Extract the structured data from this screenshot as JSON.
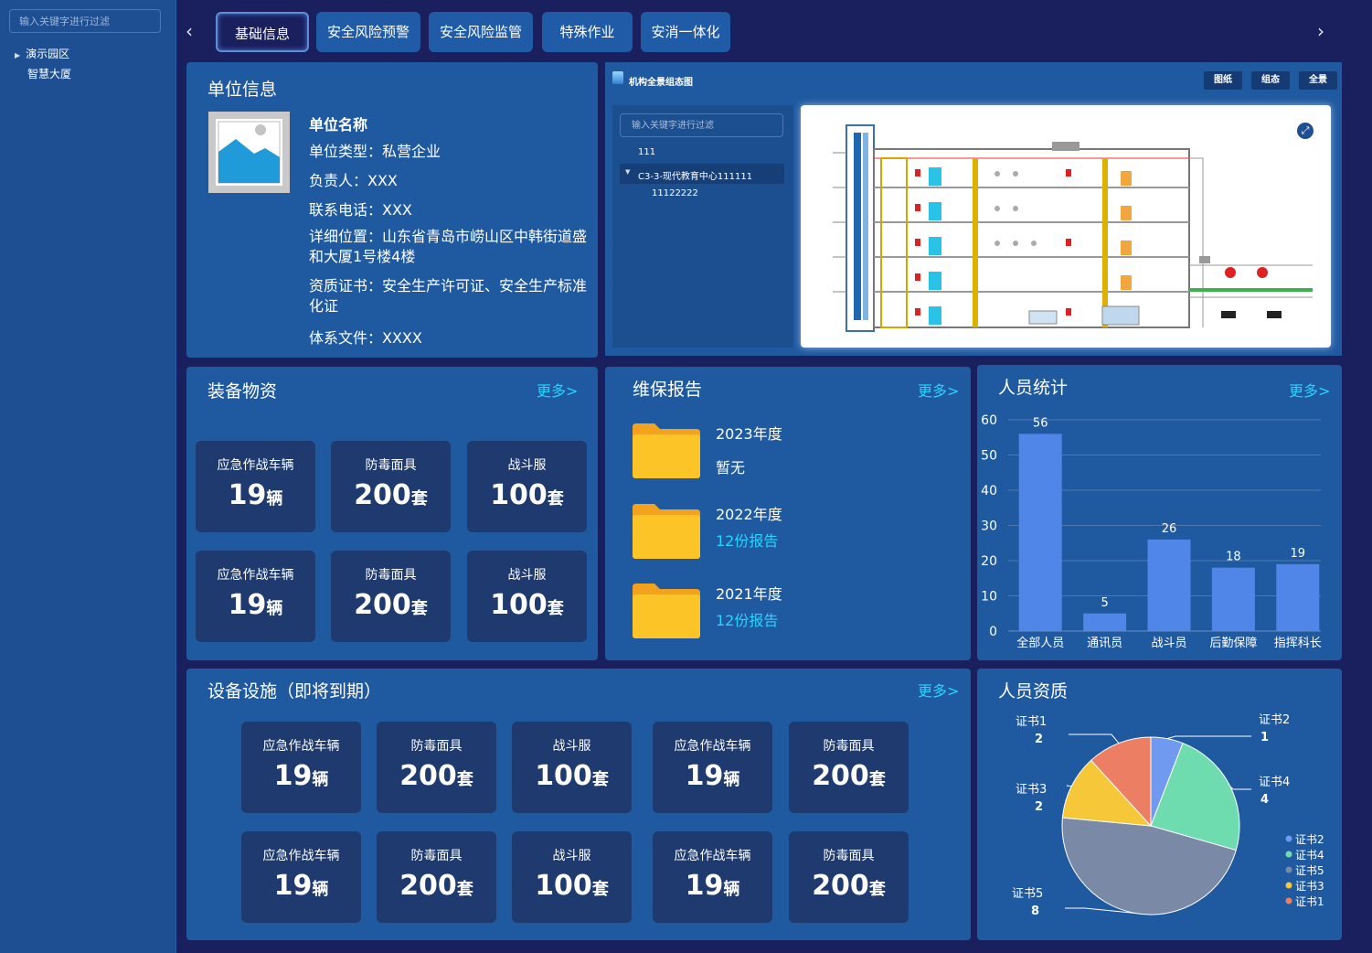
{
  "sidebar": {
    "filter_placeholder": "输入关键字进行过滤",
    "tree": [
      {
        "label": "演示园区"
      },
      {
        "label": "智慧大厦"
      }
    ]
  },
  "tabs": [
    {
      "label": "基础信息",
      "active": true
    },
    {
      "label": "安全风险预警"
    },
    {
      "label": "安全风险监管"
    },
    {
      "label": "特殊作业"
    },
    {
      "label": "安消一体化"
    }
  ],
  "nav": {
    "prev": "‹",
    "next": "›"
  },
  "unit_info": {
    "title": "单位信息",
    "name": "单位名称",
    "type": "单位类型：私营企业",
    "owner": "负责人：XXX",
    "phone": "联系电话：XXX",
    "address": "详细位置：山东省青岛市崂山区中韩街道盛和大厦1号楼4楼",
    "qualification": "资质证书：安全生产许可证、安全生产标准化证",
    "system_doc": "体系文件：XXXX"
  },
  "org_map": {
    "title": "机构全景组态图",
    "buttons": [
      "图纸",
      "组态",
      "全景"
    ],
    "filter_placeholder": "输入关键字进行过滤",
    "tree": [
      "111",
      "C3-3-现代教育中心111111",
      "11122222"
    ]
  },
  "equipment": {
    "title": "装备物资",
    "more": "更多>",
    "cards": [
      {
        "label": "应急作战车辆",
        "value": "19",
        "unit": "辆"
      },
      {
        "label": "防毒面具",
        "value": "200",
        "unit": "套"
      },
      {
        "label": "战斗服",
        "value": "100",
        "unit": "套"
      },
      {
        "label": "应急作战车辆",
        "value": "19",
        "unit": "辆"
      },
      {
        "label": "防毒面具",
        "value": "200",
        "unit": "套"
      },
      {
        "label": "战斗服",
        "value": "100",
        "unit": "套"
      }
    ]
  },
  "maintenance": {
    "title": "维保报告",
    "more": "更多>",
    "items": [
      {
        "year": "2023年度",
        "status": "暂无",
        "highlight": false
      },
      {
        "year": "2022年度",
        "status": "12份报告",
        "highlight": true
      },
      {
        "year": "2021年度",
        "status": "12份报告",
        "highlight": true
      }
    ]
  },
  "personnel": {
    "title": "人员统计",
    "more": "更多>",
    "chart_data": {
      "type": "bar",
      "categories": [
        "全部人员",
        "通讯员",
        "战斗员",
        "后勤保障",
        "指挥科长"
      ],
      "values": [
        56,
        5,
        26,
        18,
        19
      ],
      "ylim": [
        0,
        60
      ],
      "yticks": [
        "0",
        "10",
        "20",
        "30",
        "40",
        "50",
        "60"
      ],
      "bar_color": "#4f86e8",
      "grid": true
    }
  },
  "facilities": {
    "title": "设备设施（即将到期）",
    "more": "更多>",
    "cards": [
      {
        "label": "应急作战车辆",
        "value": "19",
        "unit": "辆"
      },
      {
        "label": "防毒面具",
        "value": "200",
        "unit": "套"
      },
      {
        "label": "战斗服",
        "value": "100",
        "unit": "套"
      },
      {
        "label": "应急作战车辆",
        "value": "19",
        "unit": "辆"
      },
      {
        "label": "防毒面具",
        "value": "200",
        "unit": "套"
      },
      {
        "label": "应急作战车辆",
        "value": "19",
        "unit": "辆"
      },
      {
        "label": "防毒面具",
        "value": "200",
        "unit": "套"
      },
      {
        "label": "战斗服",
        "value": "100",
        "unit": "套"
      },
      {
        "label": "应急作战车辆",
        "value": "19",
        "unit": "辆"
      },
      {
        "label": "防毒面具",
        "value": "200",
        "unit": "套"
      }
    ]
  },
  "qualification": {
    "title": "人员资质",
    "chart_data": {
      "type": "pie",
      "slices": [
        {
          "name": "证书2",
          "value": 1,
          "color": "#6f9af0"
        },
        {
          "name": "证书4",
          "value": 4,
          "color": "#6fdcb0"
        },
        {
          "name": "证书5",
          "value": 8,
          "color": "#7a8aa6"
        },
        {
          "name": "证书3",
          "value": 2,
          "color": "#f5c739"
        },
        {
          "name": "证书1",
          "value": 2,
          "color": "#ec7f63"
        }
      ],
      "legend": [
        "证书2",
        "证书4",
        "证书5",
        "证书3",
        "证书1"
      ],
      "legend_position": "bottom-right"
    }
  }
}
